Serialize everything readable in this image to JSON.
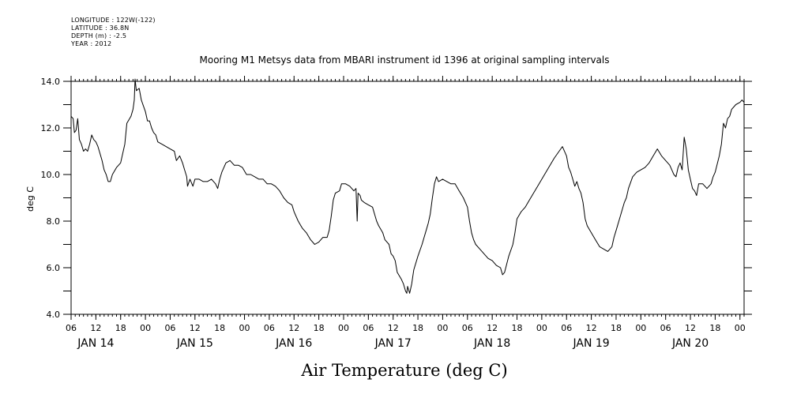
{
  "meta": {
    "longitude": "LONGITUDE : 122W(-122)",
    "latitude": "LATITUDE : 36.8N",
    "depth": "DEPTH (m) : -2.5",
    "year": "YEAR : 2012"
  },
  "chart_data": {
    "type": "line",
    "title": "Mooring M1 Metsys data from MBARI instrument id 1396 at original sampling intervals",
    "xlabel": "Air Temperature (deg C)",
    "ylabel": "deg C",
    "ylim": [
      4.0,
      14.0
    ],
    "xlim_hours": [
      -18,
      145
    ],
    "y_ticks": [
      "4.0",
      "6.0",
      "8.0",
      "10.0",
      "12.0",
      "14.0"
    ],
    "hour_ticks": [
      {
        "h": -18,
        "label": "06"
      },
      {
        "h": -12,
        "label": "12"
      },
      {
        "h": -6,
        "label": "18"
      },
      {
        "h": 0,
        "label": "00"
      },
      {
        "h": 6,
        "label": "06"
      },
      {
        "h": 12,
        "label": "12"
      },
      {
        "h": 18,
        "label": "18"
      },
      {
        "h": 24,
        "label": "00"
      },
      {
        "h": 30,
        "label": "06"
      },
      {
        "h": 36,
        "label": "12"
      },
      {
        "h": 42,
        "label": "18"
      },
      {
        "h": 48,
        "label": "00"
      },
      {
        "h": 54,
        "label": "06"
      },
      {
        "h": 60,
        "label": "12"
      },
      {
        "h": 66,
        "label": "18"
      },
      {
        "h": 72,
        "label": "00"
      },
      {
        "h": 78,
        "label": "06"
      },
      {
        "h": 84,
        "label": "12"
      },
      {
        "h": 90,
        "label": "18"
      },
      {
        "h": 96,
        "label": "00"
      },
      {
        "h": 102,
        "label": "06"
      },
      {
        "h": 108,
        "label": "12"
      },
      {
        "h": 114,
        "label": "18"
      },
      {
        "h": 120,
        "label": "00"
      },
      {
        "h": 126,
        "label": "06"
      },
      {
        "h": 132,
        "label": "12"
      },
      {
        "h": 138,
        "label": "18"
      },
      {
        "h": 144,
        "label": "00"
      }
    ],
    "day_labels": [
      {
        "h": -12,
        "label": "JAN 14"
      },
      {
        "h": 12,
        "label": "JAN 15"
      },
      {
        "h": 36,
        "label": "JAN 16"
      },
      {
        "h": 60,
        "label": "JAN 17"
      },
      {
        "h": 84,
        "label": "JAN 18"
      },
      {
        "h": 108,
        "label": "JAN 19"
      },
      {
        "h": 132,
        "label": "JAN 20"
      }
    ],
    "grid": false,
    "series": [
      {
        "values": [
          [
            -18,
            12.5
          ],
          [
            -17.5,
            12.4
          ],
          [
            -17.2,
            11.8
          ],
          [
            -16.8,
            11.9
          ],
          [
            -16.4,
            12.4
          ],
          [
            -16,
            11.5
          ],
          [
            -15.5,
            11.3
          ],
          [
            -15,
            11.0
          ],
          [
            -14.5,
            11.1
          ],
          [
            -14,
            11.0
          ],
          [
            -13.5,
            11.3
          ],
          [
            -13,
            11.7
          ],
          [
            -12.5,
            11.5
          ],
          [
            -12,
            11.4
          ],
          [
            -11.5,
            11.2
          ],
          [
            -11,
            10.9
          ],
          [
            -10.5,
            10.6
          ],
          [
            -10,
            10.2
          ],
          [
            -9.5,
            10.0
          ],
          [
            -9,
            9.7
          ],
          [
            -8.5,
            9.7
          ],
          [
            -8,
            10.0
          ],
          [
            -7,
            10.3
          ],
          [
            -6,
            10.5
          ],
          [
            -5,
            11.3
          ],
          [
            -4.5,
            12.2
          ],
          [
            -3.5,
            12.5
          ],
          [
            -3,
            12.8
          ],
          [
            -2.7,
            13.2
          ],
          [
            -2.5,
            14.1
          ],
          [
            -2.2,
            13.6
          ],
          [
            -1.5,
            13.7
          ],
          [
            -1,
            13.2
          ],
          [
            0,
            12.7
          ],
          [
            0.5,
            12.3
          ],
          [
            1,
            12.3
          ],
          [
            1.5,
            12.0
          ],
          [
            2,
            11.8
          ],
          [
            2.5,
            11.7
          ],
          [
            3,
            11.4
          ],
          [
            4,
            11.3
          ],
          [
            5,
            11.2
          ],
          [
            6,
            11.1
          ],
          [
            7,
            11.0
          ],
          [
            7.5,
            10.6
          ],
          [
            8.3,
            10.8
          ],
          [
            9,
            10.5
          ],
          [
            9.5,
            10.2
          ],
          [
            10,
            9.9
          ],
          [
            10.2,
            9.5
          ],
          [
            10.8,
            9.8
          ],
          [
            11.5,
            9.5
          ],
          [
            12,
            9.8
          ],
          [
            13,
            9.8
          ],
          [
            14,
            9.7
          ],
          [
            15,
            9.7
          ],
          [
            16,
            9.8
          ],
          [
            17,
            9.6
          ],
          [
            17.5,
            9.4
          ],
          [
            18,
            9.8
          ],
          [
            18.5,
            10.1
          ],
          [
            19.5,
            10.5
          ],
          [
            20.5,
            10.6
          ],
          [
            21.5,
            10.4
          ],
          [
            22.5,
            10.4
          ],
          [
            23.5,
            10.3
          ],
          [
            24.5,
            10.0
          ],
          [
            25.5,
            10.0
          ],
          [
            26.5,
            9.9
          ],
          [
            27.5,
            9.8
          ],
          [
            28.5,
            9.8
          ],
          [
            29.5,
            9.6
          ],
          [
            30.5,
            9.6
          ],
          [
            31.5,
            9.5
          ],
          [
            32.5,
            9.3
          ],
          [
            33.5,
            9.0
          ],
          [
            34.5,
            8.8
          ],
          [
            35.5,
            8.7
          ],
          [
            36,
            8.4
          ],
          [
            37,
            8.0
          ],
          [
            38,
            7.7
          ],
          [
            39,
            7.5
          ],
          [
            40,
            7.2
          ],
          [
            41,
            7.0
          ],
          [
            42,
            7.1
          ],
          [
            43,
            7.3
          ],
          [
            44,
            7.3
          ],
          [
            44.5,
            7.6
          ],
          [
            45,
            8.2
          ],
          [
            45.5,
            8.9
          ],
          [
            46,
            9.2
          ],
          [
            47,
            9.3
          ],
          [
            47.5,
            9.6
          ],
          [
            48.5,
            9.6
          ],
          [
            49.5,
            9.5
          ],
          [
            50.5,
            9.3
          ],
          [
            51,
            9.4
          ],
          [
            51.3,
            8.0
          ],
          [
            51.5,
            9.2
          ],
          [
            52,
            9.1
          ],
          [
            52.3,
            8.9
          ],
          [
            53,
            8.8
          ],
          [
            54,
            8.7
          ],
          [
            55,
            8.6
          ],
          [
            55.5,
            8.3
          ],
          [
            56,
            8.0
          ],
          [
            56.5,
            7.8
          ],
          [
            57.5,
            7.5
          ],
          [
            58,
            7.2
          ],
          [
            59,
            7.0
          ],
          [
            59.5,
            6.6
          ],
          [
            60,
            6.5
          ],
          [
            60.5,
            6.3
          ],
          [
            61,
            5.8
          ],
          [
            62,
            5.5
          ],
          [
            62.5,
            5.3
          ],
          [
            63,
            5.0
          ],
          [
            63.3,
            4.9
          ],
          [
            63.5,
            5.2
          ],
          [
            64,
            4.9
          ],
          [
            64.5,
            5.3
          ],
          [
            65,
            5.9
          ],
          [
            66,
            6.5
          ],
          [
            67,
            7.0
          ],
          [
            68,
            7.6
          ],
          [
            68.5,
            7.9
          ],
          [
            69,
            8.3
          ],
          [
            69.5,
            9.0
          ],
          [
            70,
            9.6
          ],
          [
            70.5,
            9.9
          ],
          [
            71,
            9.7
          ],
          [
            72,
            9.8
          ],
          [
            73,
            9.7
          ],
          [
            74,
            9.6
          ],
          [
            75,
            9.6
          ],
          [
            76,
            9.3
          ],
          [
            77,
            9.0
          ],
          [
            78,
            8.6
          ],
          [
            78.5,
            8.0
          ],
          [
            79,
            7.5
          ],
          [
            79.5,
            7.2
          ],
          [
            80,
            7.0
          ],
          [
            81,
            6.8
          ],
          [
            82,
            6.6
          ],
          [
            83,
            6.4
          ],
          [
            84,
            6.3
          ],
          [
            85,
            6.1
          ],
          [
            86,
            6.0
          ],
          [
            86.5,
            5.7
          ],
          [
            87,
            5.8
          ],
          [
            88,
            6.5
          ],
          [
            89,
            7.0
          ],
          [
            89.5,
            7.5
          ],
          [
            90,
            8.1
          ],
          [
            91,
            8.4
          ],
          [
            92,
            8.6
          ],
          [
            93,
            8.9
          ],
          [
            95,
            9.5
          ],
          [
            97,
            10.1
          ],
          [
            99,
            10.7
          ],
          [
            101,
            11.2
          ],
          [
            102,
            10.8
          ],
          [
            102.5,
            10.3
          ],
          [
            103,
            10.1
          ],
          [
            103.5,
            9.8
          ],
          [
            104,
            9.5
          ],
          [
            104.5,
            9.7
          ],
          [
            105,
            9.4
          ],
          [
            105.5,
            9.2
          ],
          [
            106,
            8.8
          ],
          [
            106.5,
            8.1
          ],
          [
            107,
            7.8
          ],
          [
            108,
            7.5
          ],
          [
            109,
            7.2
          ],
          [
            110,
            6.9
          ],
          [
            111,
            6.8
          ],
          [
            112,
            6.7
          ],
          [
            113,
            6.9
          ],
          [
            113.5,
            7.3
          ],
          [
            114,
            7.6
          ],
          [
            115,
            8.2
          ],
          [
            116,
            8.8
          ],
          [
            116.5,
            9.0
          ],
          [
            117,
            9.4
          ],
          [
            118,
            9.9
          ],
          [
            119,
            10.1
          ],
          [
            120,
            10.2
          ],
          [
            121,
            10.3
          ],
          [
            122,
            10.5
          ],
          [
            123,
            10.8
          ],
          [
            124,
            11.1
          ],
          [
            125,
            10.8
          ],
          [
            126,
            10.6
          ],
          [
            127,
            10.4
          ],
          [
            127.5,
            10.2
          ],
          [
            128,
            10.0
          ],
          [
            128.5,
            9.9
          ],
          [
            129,
            10.3
          ],
          [
            129.5,
            10.5
          ],
          [
            130,
            10.2
          ],
          [
            130.5,
            11.6
          ],
          [
            131,
            11.1
          ],
          [
            131.5,
            10.2
          ],
          [
            132,
            9.8
          ],
          [
            132.5,
            9.4
          ],
          [
            133,
            9.3
          ],
          [
            133.5,
            9.1
          ],
          [
            134,
            9.6
          ],
          [
            135,
            9.6
          ],
          [
            136,
            9.4
          ],
          [
            137,
            9.6
          ],
          [
            137.5,
            9.9
          ],
          [
            138,
            10.1
          ],
          [
            139,
            10.8
          ],
          [
            139.5,
            11.3
          ],
          [
            140,
            12.2
          ],
          [
            140.5,
            12.0
          ],
          [
            141,
            12.4
          ],
          [
            141.5,
            12.5
          ],
          [
            142,
            12.8
          ],
          [
            143,
            13.0
          ],
          [
            144,
            13.1
          ],
          [
            144.5,
            13.2
          ],
          [
            145,
            13.1
          ]
        ]
      }
    ]
  }
}
